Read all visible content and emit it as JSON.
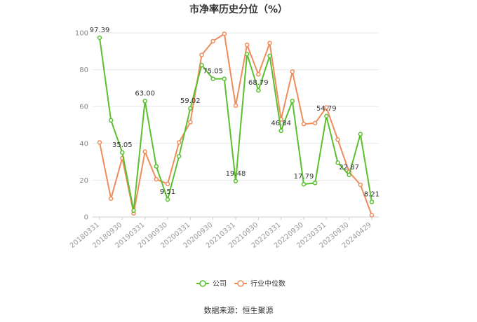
{
  "chart_data": {
    "type": "line",
    "title": "市净率历史分位（%）",
    "ylim": [
      0,
      100
    ],
    "yticks": [
      0,
      20,
      40,
      60,
      80,
      100
    ],
    "x_tick_labels": [
      "20180331",
      "20180930",
      "20190331",
      "20190930",
      "20200331",
      "20200930",
      "20210331",
      "20210930",
      "20220331",
      "20220930",
      "20230331",
      "20230930",
      "20240429"
    ],
    "series": [
      {
        "name": "公司",
        "color": "#5ac02f",
        "values": [
          97.39,
          52.5,
          35.05,
          3.5,
          63.0,
          27.5,
          9.51,
          33.0,
          59.02,
          82.5,
          75.05,
          75.05,
          19.48,
          88.5,
          68.79,
          87.5,
          46.84,
          63.0,
          17.79,
          18.5,
          54.79,
          29.5,
          22.87,
          45.0,
          8.21
        ]
      },
      {
        "name": "行业中位数",
        "color": "#f08c5a",
        "values": [
          40.5,
          10.0,
          32.0,
          2.0,
          35.5,
          20.5,
          18.0,
          40.5,
          51.5,
          88.0,
          95.5,
          99.5,
          60.5,
          93.5,
          77.5,
          94.5,
          53.0,
          79.0,
          50.5,
          51.0,
          59.5,
          42.0,
          24.5,
          17.5,
          1.0
        ]
      }
    ],
    "data_labels": [
      {
        "index": 0,
        "text": "97.39"
      },
      {
        "index": 2,
        "text": "35.05"
      },
      {
        "index": 4,
        "text": "63.00"
      },
      {
        "index": 6,
        "text": "9.51"
      },
      {
        "index": 8,
        "text": "59.02"
      },
      {
        "index": 10,
        "text": "75.05"
      },
      {
        "index": 12,
        "text": "19.48"
      },
      {
        "index": 14,
        "text": "68.79"
      },
      {
        "index": 16,
        "text": "46.84"
      },
      {
        "index": 18,
        "text": "17.79"
      },
      {
        "index": 20,
        "text": "54.79"
      },
      {
        "index": 22,
        "text": "22.87"
      },
      {
        "index": 24,
        "text": "8.21"
      }
    ],
    "legend": [
      "公司",
      "行业中位数"
    ],
    "legend_position": "bottom",
    "grid": true
  },
  "source_text": "数据来源：恒生聚源"
}
